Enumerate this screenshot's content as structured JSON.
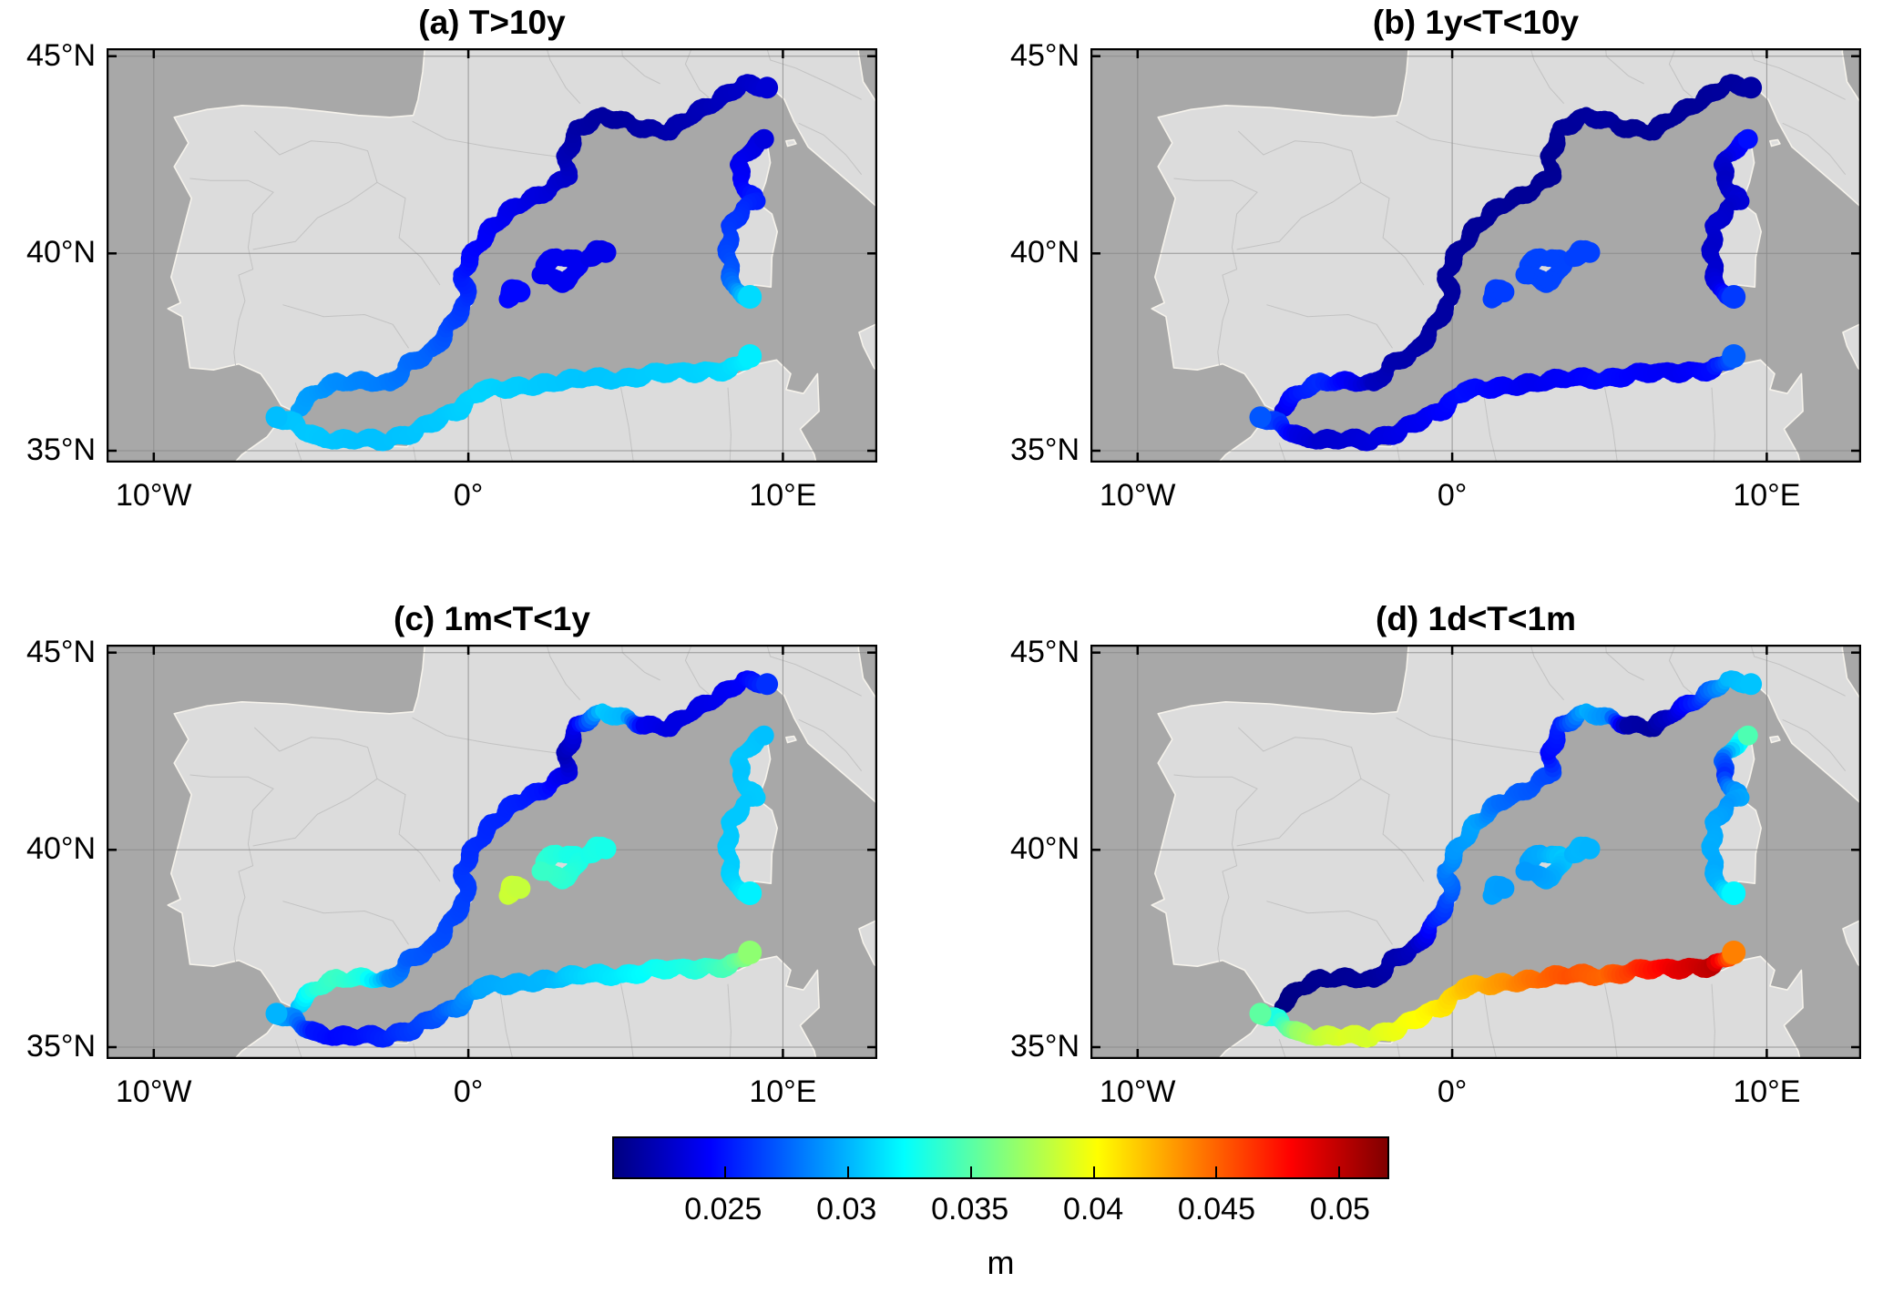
{
  "figure": {
    "colors": {
      "background": "#ffffff",
      "sea": "#a8a8a8",
      "land": "#dcdcdc",
      "coastline": "#f6f3ec",
      "admin_border": "#c2c2c2",
      "grid": "#8a8a8a",
      "frame": "#000000",
      "text": "#000000"
    }
  },
  "chart_data": {
    "type": "scatter",
    "subtype": "geographic map scatter, 2x2 panels, colored by value (jet colormap)",
    "basemap": "Western Mediterranean: Iberian Peninsula, S France, Italy, Corsica, Sardinia, Balearics, North Africa",
    "lon_range": [
      -11.5,
      13.0
    ],
    "lat_range": [
      34.7,
      45.2
    ],
    "grid": true,
    "x_ticks": [
      {
        "lon": -10,
        "label": "10°W"
      },
      {
        "lon": 0,
        "label": "0°"
      },
      {
        "lon": 10,
        "label": "10°E"
      }
    ],
    "y_ticks": [
      {
        "lat": 45,
        "label": "45°N"
      },
      {
        "lat": 40,
        "label": "40°N"
      },
      {
        "lat": 35,
        "label": "35°N"
      }
    ],
    "colorbar": {
      "label": "m",
      "colormap": "jet",
      "range": [
        0.0205,
        0.052
      ],
      "ticks": [
        0.025,
        0.03,
        0.035,
        0.04,
        0.045,
        0.05
      ],
      "tick_labels": [
        "0.025",
        "0.03",
        "0.035",
        "0.04",
        "0.045",
        "0.05"
      ],
      "orientation": "horizontal"
    },
    "tracks": {
      "mainland": {
        "name": "Spain-France-Liguria coast",
        "r": 9,
        "cap": 12,
        "startCap": 0,
        "points": [
          [
            -5.45,
            36.05
          ],
          [
            -4.85,
            36.5
          ],
          [
            -4.2,
            36.72
          ],
          [
            -3.3,
            36.75
          ],
          [
            -2.45,
            36.7
          ],
          [
            -1.9,
            37.2
          ],
          [
            -1.1,
            37.55
          ],
          [
            -0.55,
            38.2
          ],
          [
            0.0,
            38.85
          ],
          [
            -0.2,
            39.45
          ],
          [
            0.1,
            39.95
          ],
          [
            0.75,
            40.65
          ],
          [
            1.5,
            41.2
          ],
          [
            2.35,
            41.5
          ],
          [
            3.15,
            41.95
          ],
          [
            3.1,
            42.45
          ],
          [
            3.45,
            43.15
          ],
          [
            4.25,
            43.5
          ],
          [
            4.95,
            43.35
          ],
          [
            5.6,
            43.15
          ],
          [
            6.4,
            43.1
          ],
          [
            7.1,
            43.5
          ],
          [
            7.9,
            43.85
          ],
          [
            8.75,
            44.3
          ],
          [
            9.5,
            44.2
          ]
        ]
      },
      "corsica_sardinia": {
        "name": "Corsica-Sardinia west coast",
        "r": 9,
        "cap": 13,
        "startCap": 11,
        "points": [
          [
            9.4,
            42.9
          ],
          [
            8.95,
            42.62
          ],
          [
            8.6,
            42.25
          ],
          [
            8.65,
            41.9
          ],
          [
            8.85,
            41.55
          ],
          [
            9.15,
            41.35
          ],
          [
            8.75,
            41.15
          ],
          [
            8.35,
            40.7
          ],
          [
            8.25,
            40.1
          ],
          [
            8.35,
            39.5
          ],
          [
            8.45,
            39.05
          ],
          [
            8.95,
            38.9
          ]
        ]
      },
      "africa": {
        "name": "North Africa coast",
        "r": 9.5,
        "cap": 13,
        "startCap": 12,
        "points": [
          [
            -6.1,
            35.85
          ],
          [
            -5.55,
            35.7
          ],
          [
            -4.9,
            35.35
          ],
          [
            -4.2,
            35.25
          ],
          [
            -3.4,
            35.3
          ],
          [
            -2.6,
            35.25
          ],
          [
            -1.8,
            35.45
          ],
          [
            -1.0,
            35.8
          ],
          [
            -0.3,
            36.05
          ],
          [
            0.4,
            36.55
          ],
          [
            1.5,
            36.6
          ],
          [
            2.6,
            36.7
          ],
          [
            3.7,
            36.85
          ],
          [
            4.9,
            36.8
          ],
          [
            6.1,
            37.0
          ],
          [
            7.2,
            37.0
          ],
          [
            8.3,
            37.05
          ],
          [
            8.95,
            37.4
          ]
        ]
      },
      "mallorca": {
        "name": "Mallorca",
        "r": 10,
        "cap": 0,
        "startCap": 0,
        "points": [
          [
            2.35,
            39.5
          ],
          [
            2.42,
            39.72
          ],
          [
            2.8,
            39.88
          ],
          [
            3.2,
            39.92
          ],
          [
            3.48,
            39.78
          ],
          [
            3.4,
            39.46
          ],
          [
            3.0,
            39.3
          ],
          [
            2.6,
            39.36
          ],
          [
            2.35,
            39.5
          ]
        ]
      },
      "menorca": {
        "name": "Menorca",
        "r": 11,
        "cap": 0,
        "startCap": 0,
        "points": [
          [
            3.82,
            39.92
          ],
          [
            4.08,
            40.05
          ],
          [
            4.35,
            39.98
          ]
        ]
      },
      "ibiza": {
        "name": "Ibiza",
        "r": 11,
        "cap": 0,
        "startCap": 0,
        "points": [
          [
            1.22,
            38.86
          ],
          [
            1.38,
            39.06
          ],
          [
            1.62,
            38.98
          ]
        ]
      }
    },
    "panels": [
      {
        "id": "a",
        "title": "(a) T>10y",
        "values": {
          "mainland": [
            0.0295,
            0.0292,
            0.0288,
            0.0285,
            0.0282,
            0.0278,
            0.0274,
            0.0266,
            0.0259,
            0.0252,
            0.0246,
            0.0242,
            0.0238,
            0.0234,
            0.0228,
            0.0222,
            0.0217,
            0.0215,
            0.0215,
            0.0217,
            0.0219,
            0.0221,
            0.0224,
            0.0227,
            0.0231
          ],
          "corsica_sardinia": [
            0.0234,
            0.0236,
            0.0239,
            0.0242,
            0.0247,
            0.0253,
            0.0257,
            0.0261,
            0.0265,
            0.0271,
            0.0285,
            0.0312
          ],
          "africa": [
            0.0303,
            0.0305,
            0.0306,
            0.0305,
            0.0304,
            0.0304,
            0.0305,
            0.0306,
            0.0308,
            0.031,
            0.0308,
            0.0306,
            0.0305,
            0.0306,
            0.0308,
            0.0309,
            0.0312,
            0.0318
          ],
          "mallorca": [
            0.024,
            0.024,
            0.024,
            0.024,
            0.024,
            0.024,
            0.024,
            0.024,
            0.024
          ],
          "menorca": [
            0.0238,
            0.0238,
            0.0238
          ],
          "ibiza": [
            0.0246,
            0.0246,
            0.0246
          ]
        }
      },
      {
        "id": "b",
        "title": "(b) 1y<T<10y",
        "values": {
          "mainland": [
            0.0237,
            0.0252,
            0.0257,
            0.0242,
            0.0225,
            0.022,
            0.0218,
            0.0216,
            0.0215,
            0.0214,
            0.0214,
            0.0213,
            0.0213,
            0.0212,
            0.0212,
            0.0211,
            0.0213,
            0.0214,
            0.0215,
            0.0212,
            0.0212,
            0.0213,
            0.0213,
            0.0214,
            0.0216
          ],
          "corsica_sardinia": [
            0.0248,
            0.0242,
            0.023,
            0.0226,
            0.0228,
            0.0232,
            0.0228,
            0.023,
            0.0228,
            0.023,
            0.0238,
            0.0262
          ],
          "africa": [
            0.0271,
            0.0261,
            0.0236,
            0.023,
            0.0231,
            0.0234,
            0.0237,
            0.024,
            0.0244,
            0.0248,
            0.0244,
            0.024,
            0.0243,
            0.0247,
            0.0243,
            0.0241,
            0.0247,
            0.0273
          ],
          "mallorca": [
            0.0265,
            0.0265,
            0.0265,
            0.0265,
            0.0265,
            0.0265,
            0.0265,
            0.0265,
            0.0265
          ],
          "menorca": [
            0.0264,
            0.0264,
            0.0264
          ],
          "ibiza": [
            0.0263,
            0.0263,
            0.0263
          ]
        }
      },
      {
        "id": "c",
        "title": "(c) 1m<T<1y",
        "values": {
          "mainland": [
            0.0305,
            0.0335,
            0.0341,
            0.0331,
            0.0287,
            0.0273,
            0.0269,
            0.0266,
            0.0263,
            0.0261,
            0.0258,
            0.0256,
            0.0254,
            0.025,
            0.0236,
            0.0222,
            0.024,
            0.0306,
            0.0301,
            0.024,
            0.0235,
            0.0236,
            0.0239,
            0.0243,
            0.0259
          ],
          "corsica_sardinia": [
            0.0304,
            0.0305,
            0.0306,
            0.0305,
            0.0306,
            0.0307,
            0.0306,
            0.0306,
            0.0307,
            0.0308,
            0.0311,
            0.0319
          ],
          "africa": [
            0.03,
            0.0286,
            0.0251,
            0.0246,
            0.0249,
            0.0255,
            0.0262,
            0.0269,
            0.0283,
            0.0296,
            0.0299,
            0.0301,
            0.0311,
            0.0318,
            0.0327,
            0.0333,
            0.0346,
            0.0367
          ],
          "mallorca": [
            0.034,
            0.0338,
            0.0334,
            0.0331,
            0.033,
            0.0333,
            0.0336,
            0.0339,
            0.034
          ],
          "menorca": [
            0.033,
            0.0331,
            0.033
          ],
          "ibiza": [
            0.0385,
            0.0386,
            0.0384
          ]
        }
      },
      {
        "id": "d",
        "title": "(d) 1d<T<1m",
        "values": {
          "mainland": [
            0.0206,
            0.0208,
            0.021,
            0.0212,
            0.0214,
            0.0219,
            0.0226,
            0.0253,
            0.027,
            0.0282,
            0.0291,
            0.0295,
            0.0278,
            0.0272,
            0.0266,
            0.0246,
            0.0254,
            0.0298,
            0.0288,
            0.0218,
            0.0215,
            0.0233,
            0.0262,
            0.0301,
            0.0305
          ],
          "corsica_sardinia": [
            0.0347,
            0.0317,
            0.0273,
            0.0259,
            0.0284,
            0.0296,
            0.0291,
            0.0296,
            0.0298,
            0.0297,
            0.0301,
            0.0321
          ],
          "africa": [
            0.0352,
            0.0331,
            0.0369,
            0.0383,
            0.0391,
            0.0389,
            0.0396,
            0.0402,
            0.0409,
            0.0421,
            0.0433,
            0.0446,
            0.0456,
            0.0449,
            0.0471,
            0.0489,
            0.0501,
            0.0441
          ],
          "mallorca": [
            0.0292,
            0.0294,
            0.0297,
            0.0301,
            0.0306,
            0.0301,
            0.0296,
            0.0293,
            0.0292
          ],
          "menorca": [
            0.03,
            0.0301,
            0.03
          ],
          "ibiza": [
            0.0294,
            0.0294,
            0.0293
          ]
        }
      }
    ]
  }
}
